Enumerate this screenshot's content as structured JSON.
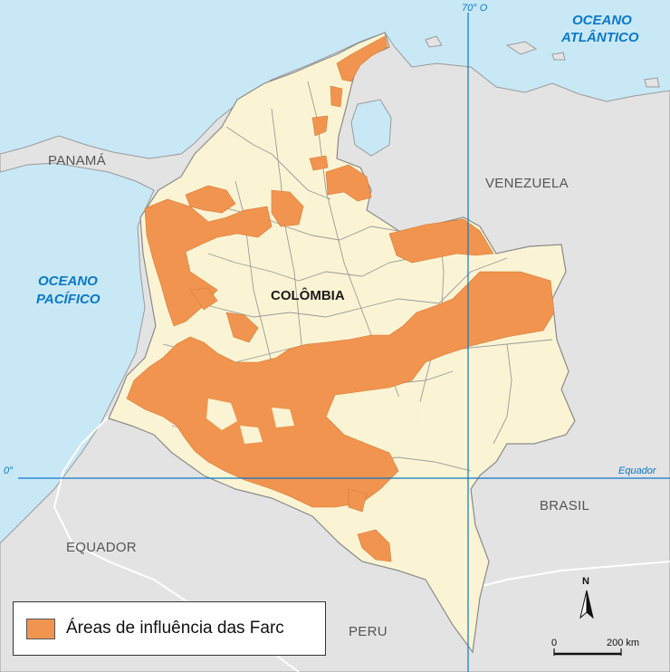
{
  "colors": {
    "ocean": "#c9e8f6",
    "land": "#e3e3e3",
    "colombia": "#fbf4d4",
    "farc": "#f0944f",
    "line": "#0a78c8"
  },
  "labels": {
    "country_main": "COLÔMBIA",
    "panama": "PANAMÁ",
    "venezuela": "VENEZUELA",
    "brasil": "BRASIL",
    "equador": "EQUADOR",
    "peru": "PERU",
    "ocean_atlantic_1": "OCEANO",
    "ocean_atlantic_2": "ATLÂNTICO",
    "ocean_pacific_1": "OCEANO",
    "ocean_pacific_2": "PACÍFICO",
    "meridian": "70° O",
    "equator": "Equador",
    "equator_degree": "0°"
  },
  "legend": {
    "label": "Áreas de influência das Farc"
  },
  "scale": {
    "start": "0",
    "end": "200 km"
  },
  "north": "N"
}
